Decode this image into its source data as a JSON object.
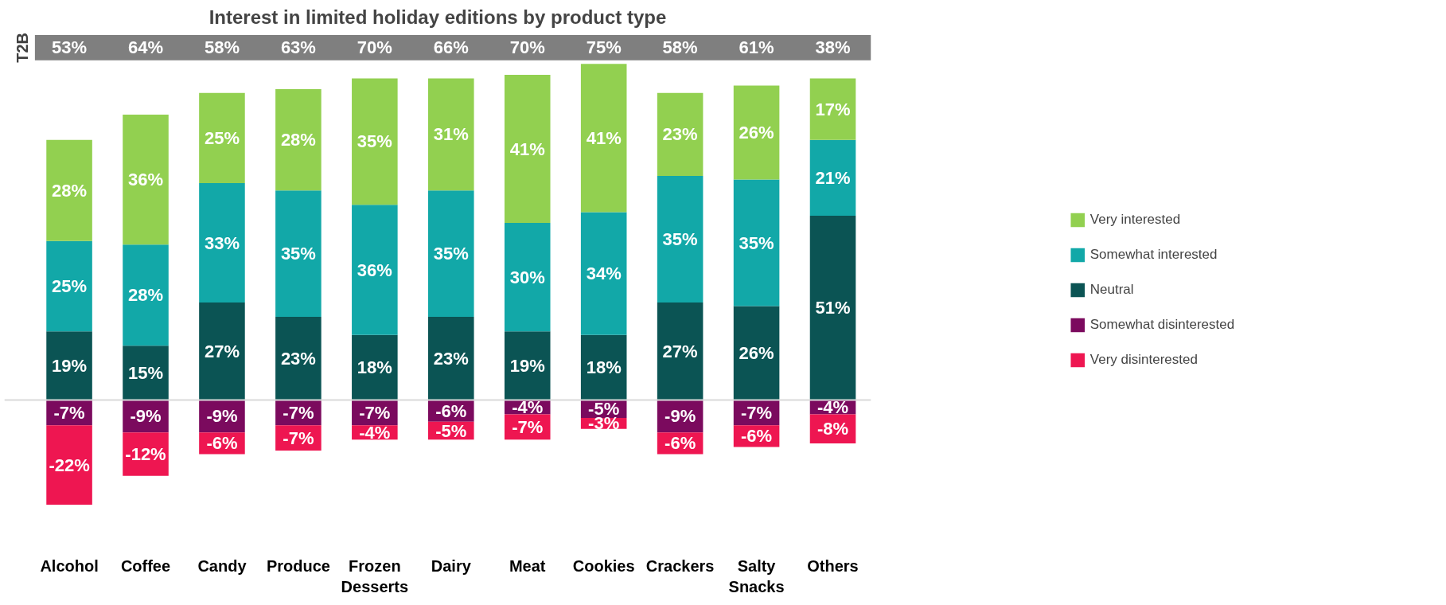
{
  "chart_data": {
    "type": "bar",
    "title": "Interest in limited holiday editions by product type",
    "stacked": true,
    "legend": "right",
    "categories": [
      "Alcohol",
      "Coffee",
      "Candy",
      "Produce",
      "Frozen Desserts",
      "Dairy",
      "Meat",
      "Cookies",
      "Crackers",
      "Salty Snacks",
      "Others"
    ],
    "series": [
      {
        "name": "Neutral",
        "color": "#0b5454",
        "values": [
          19,
          15,
          27,
          23,
          18,
          23,
          19,
          18,
          27,
          26,
          51
        ],
        "value_labels": [
          "19%",
          "15%",
          "27%",
          "23%",
          "18%",
          "23%",
          "19%",
          "18%",
          "27%",
          "26%",
          "51%"
        ]
      },
      {
        "name": "Somewhat interested",
        "color": "#12a8a8",
        "values": [
          25,
          28,
          33,
          35,
          36,
          35,
          30,
          34,
          35,
          35,
          21
        ],
        "value_labels": [
          "25%",
          "28%",
          "33%",
          "35%",
          "36%",
          "35%",
          "30%",
          "34%",
          "35%",
          "35%",
          "21%"
        ]
      },
      {
        "name": "Very interested",
        "color": "#92d050",
        "values": [
          28,
          36,
          25,
          28,
          35,
          31,
          41,
          41,
          23,
          26,
          17
        ],
        "value_labels": [
          "28%",
          "36%",
          "25%",
          "28%",
          "35%",
          "31%",
          "41%",
          "41%",
          "23%",
          "26%",
          "17%"
        ]
      },
      {
        "name": "Somewhat disinterested",
        "color": "#7b0a5e",
        "values": [
          -7,
          -9,
          -9,
          -7,
          -7,
          -6,
          -4,
          -5,
          -9,
          -7,
          -4
        ],
        "value_labels": [
          "-7%",
          "-9%",
          "-9%",
          "-7%",
          "-7%",
          "-6%",
          "-4%",
          "-5%",
          "-9%",
          "-7%",
          "-4%"
        ]
      },
      {
        "name": "Very disinterested",
        "color": "#ee1651",
        "values": [
          -22,
          -12,
          -6,
          -7,
          -4,
          -5,
          -7,
          -3,
          -6,
          -6,
          -8
        ],
        "value_labels": [
          "-22%",
          "-12%",
          "-6%",
          "-7%",
          "-4%",
          "-5%",
          "-7%",
          "-3%",
          "-6%",
          "-6%",
          "-8%"
        ]
      }
    ],
    "annotations": [
      "T2B",
      "53%",
      "64%",
      "58%",
      "63%",
      "70%",
      "66%",
      "70%",
      "75%",
      "58%",
      "61%",
      "38%"
    ],
    "ref_lines": [
      {
        "axis": "y",
        "value": 0,
        "color": "#d9d9d9"
      }
    ]
  }
}
